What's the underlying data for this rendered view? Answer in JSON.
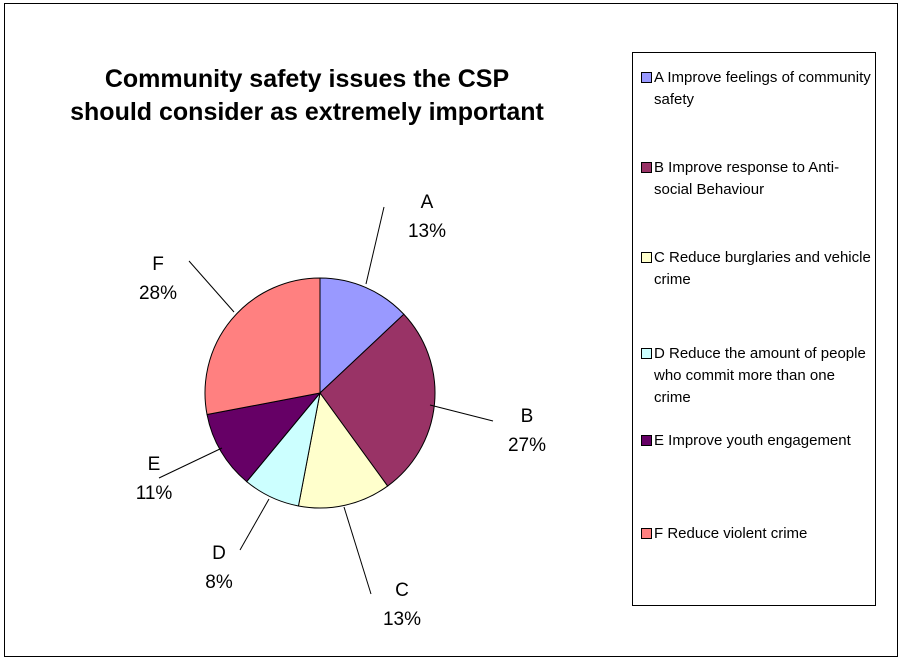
{
  "chart_data": {
    "type": "pie",
    "title": "Community safety issues the CSP should consider as extremely important",
    "title_lines": [
      "Community safety issues the CSP",
      "should consider as extremely important"
    ],
    "slices": [
      {
        "label": "A",
        "value": 13,
        "display": "13%",
        "legend": "A Improve feelings of community safety",
        "color": "#9999ff"
      },
      {
        "label": "B",
        "value": 27,
        "display": "27%",
        "legend": "B Improve response to Anti-social Behaviour",
        "color": "#993366"
      },
      {
        "label": "C",
        "value": 13,
        "display": "13%",
        "legend": "C Reduce burglaries and vehicle crime",
        "color": "#ffffcc"
      },
      {
        "label": "D",
        "value": 8,
        "display": "8%",
        "legend": "D Reduce the amount of people who commit more than one crime",
        "color": "#ccffff"
      },
      {
        "label": "E",
        "value": 11,
        "display": "11%",
        "legend": "E Improve youth engagement",
        "color": "#660066"
      },
      {
        "label": "F",
        "value": 28,
        "display": "28%",
        "legend": "F Reduce violent crime",
        "color": "#ff8080"
      }
    ],
    "legend_position": "right"
  }
}
